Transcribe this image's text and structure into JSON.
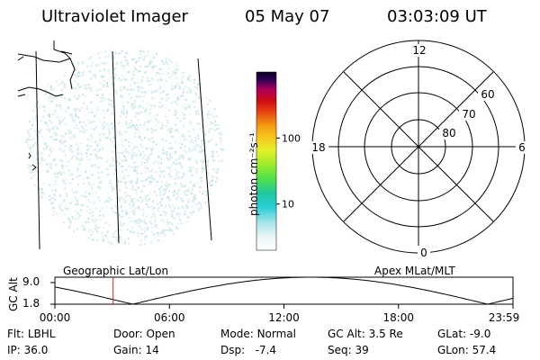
{
  "header": {
    "instrument": "Ultraviolet Imager",
    "date": "05 May 07",
    "time": "03:03:09 UT"
  },
  "colorbar": {
    "ticks": [
      {
        "label": "100",
        "level": 100
      },
      {
        "label": "10",
        "level": 10
      }
    ],
    "unit_label": "photon cm⁻²s⁻¹"
  },
  "polar": {
    "mlt_labels": [
      "12",
      "18",
      "6",
      "0"
    ],
    "lat_labels": [
      "60",
      "70",
      "80"
    ]
  },
  "timeline": {
    "left_caption": "Geographic Lat/Lon",
    "right_caption": "Apex MLat/MLT",
    "axis_label": "GC Alt",
    "y_max": "9.0",
    "y_min": "1.8",
    "x_ticks": [
      "00:00",
      "06:00",
      "12:00",
      "18:00",
      "23:59"
    ],
    "current_time_fraction": 0.1271
  },
  "info": {
    "flt_label": "Flt:",
    "flt_value": "LBHL",
    "ip_label": "IP:",
    "ip_value": "36.0",
    "door_label": "Door:",
    "door_value": "Open",
    "gain_label": "Gain:",
    "gain_value": "14",
    "mode_label": "Mode:",
    "mode_value": "Normal",
    "dsp_label": "Dsp:",
    "dsp_value": "-7.4",
    "gcalt_label": "GC Alt:",
    "gcalt_value": "3.5 Re",
    "seq_label": "Seq:",
    "seq_value": "39",
    "glat_label": "GLat:",
    "glat_value": "-9.0",
    "glon_label": "GLon:",
    "glon_value": "57.4"
  }
}
